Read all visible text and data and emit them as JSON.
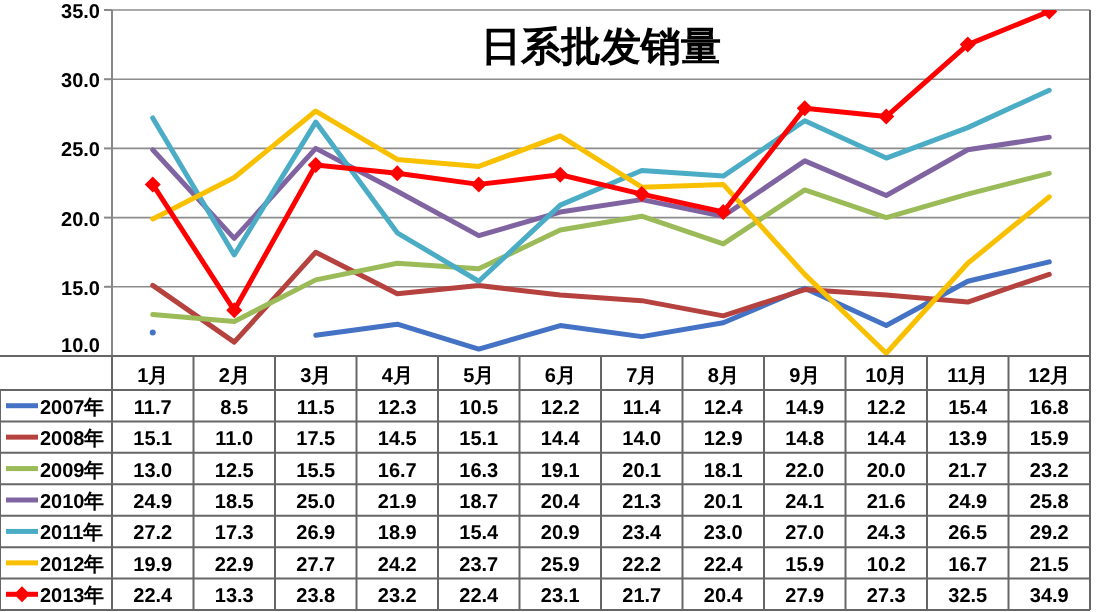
{
  "chart_data": {
    "type": "line",
    "title": "日系批发销量",
    "categories": [
      "1月",
      "2月",
      "3月",
      "4月",
      "5月",
      "6月",
      "7月",
      "8月",
      "9月",
      "10月",
      "11月",
      "12月"
    ],
    "series": [
      {
        "name": "2007年",
        "color": "#4472c4",
        "marker": "none",
        "values": [
          11.7,
          null,
          11.5,
          12.3,
          10.5,
          12.2,
          11.4,
          12.4,
          14.9,
          12.2,
          15.4,
          16.8
        ],
        "value_labels": [
          "11.7",
          "8.5",
          "11.5",
          "12.3",
          "10.5",
          "12.2",
          "11.4",
          "12.4",
          "14.9",
          "12.2",
          "15.4",
          "16.8"
        ]
      },
      {
        "name": "2008年",
        "color": "#b5423e",
        "marker": "none",
        "values": [
          15.1,
          11.0,
          17.5,
          14.5,
          15.1,
          14.4,
          14.0,
          12.9,
          14.8,
          14.4,
          13.9,
          15.9
        ],
        "value_labels": [
          "15.1",
          "11.0",
          "17.5",
          "14.5",
          "15.1",
          "14.4",
          "14.0",
          "12.9",
          "14.8",
          "14.4",
          "13.9",
          "15.9"
        ]
      },
      {
        "name": "2009年",
        "color": "#9bbb59",
        "marker": "none",
        "values": [
          13.0,
          12.5,
          15.5,
          16.7,
          16.3,
          19.1,
          20.1,
          18.1,
          22.0,
          20.0,
          21.7,
          23.2
        ],
        "value_labels": [
          "13.0",
          "12.5",
          "15.5",
          "16.7",
          "16.3",
          "19.1",
          "20.1",
          "18.1",
          "22.0",
          "20.0",
          "21.7",
          "23.2"
        ]
      },
      {
        "name": "2010年",
        "color": "#8064a2",
        "marker": "none",
        "values": [
          24.9,
          18.5,
          25.0,
          21.9,
          18.7,
          20.4,
          21.3,
          20.1,
          24.1,
          21.6,
          24.9,
          25.8
        ],
        "value_labels": [
          "24.9",
          "18.5",
          "25.0",
          "21.9",
          "18.7",
          "20.4",
          "21.3",
          "20.1",
          "24.1",
          "21.6",
          "24.9",
          "25.8"
        ]
      },
      {
        "name": "2011年",
        "color": "#4bacc6",
        "marker": "none",
        "values": [
          27.2,
          17.3,
          26.9,
          18.9,
          15.4,
          20.9,
          23.4,
          23.0,
          27.0,
          24.3,
          26.5,
          29.2
        ],
        "value_labels": [
          "27.2",
          "17.3",
          "26.9",
          "18.9",
          "15.4",
          "20.9",
          "23.4",
          "23.0",
          "27.0",
          "24.3",
          "26.5",
          "29.2"
        ]
      },
      {
        "name": "2012年",
        "color": "#f9c000",
        "marker": "none",
        "values": [
          19.9,
          22.9,
          27.7,
          24.2,
          23.7,
          25.9,
          22.2,
          22.4,
          15.9,
          10.2,
          16.7,
          21.5
        ],
        "value_labels": [
          "19.9",
          "22.9",
          "27.7",
          "24.2",
          "23.7",
          "25.9",
          "22.2",
          "22.4",
          "15.9",
          "10.2",
          "16.7",
          "21.5"
        ]
      },
      {
        "name": "2013年",
        "color": "#ff0000",
        "marker": "diamond",
        "values": [
          22.4,
          13.3,
          23.8,
          23.2,
          22.4,
          23.1,
          21.7,
          20.4,
          27.9,
          27.3,
          32.5,
          34.9
        ],
        "value_labels": [
          "22.4",
          "13.3",
          "23.8",
          "23.2",
          "22.4",
          "23.1",
          "21.7",
          "20.4",
          "27.9",
          "27.3",
          "32.5",
          "34.9"
        ]
      }
    ],
    "ylim": [
      10,
      35
    ],
    "yticks": [
      {
        "value": 10,
        "label": "10.0"
      },
      {
        "value": 15,
        "label": "15.0"
      },
      {
        "value": 20,
        "label": "20.0"
      },
      {
        "value": 25,
        "label": "25.0"
      },
      {
        "value": 30,
        "label": "30.0"
      },
      {
        "value": 35,
        "label": "35.0"
      }
    ],
    "grid": "y",
    "legend": "bottom"
  }
}
